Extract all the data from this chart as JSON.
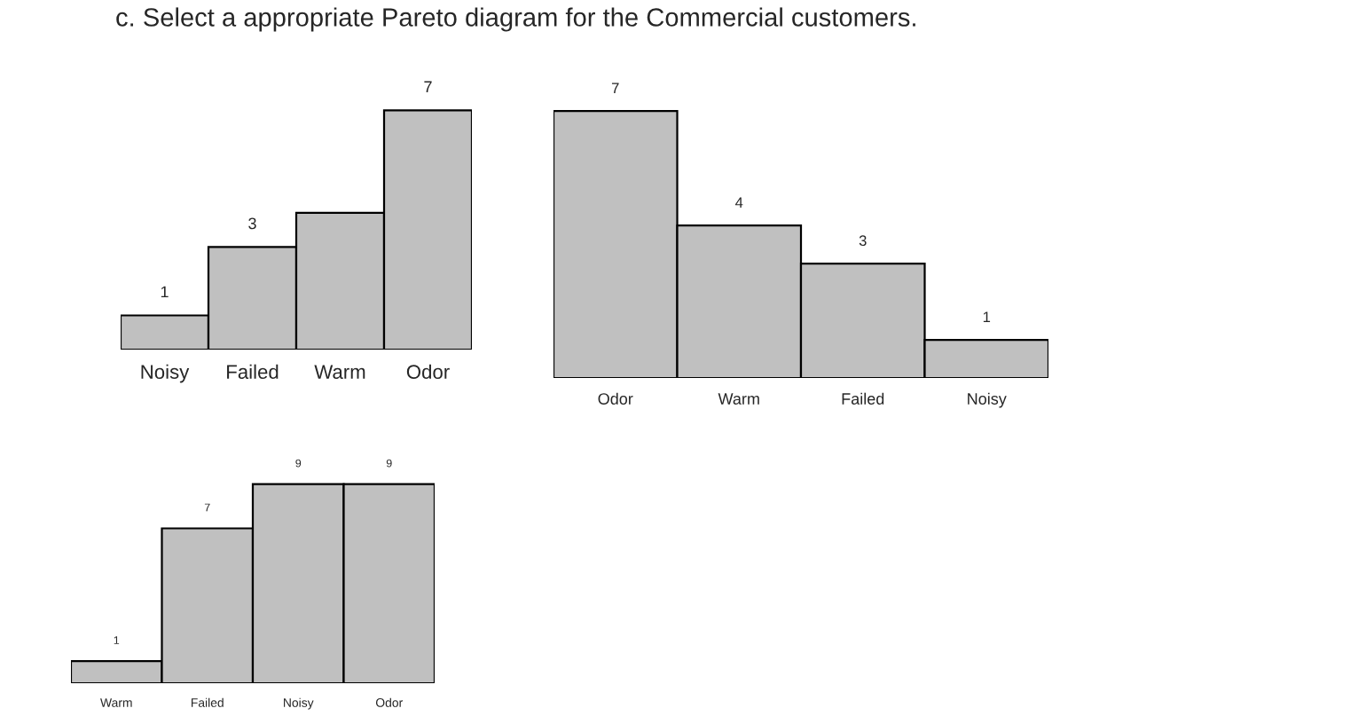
{
  "chart_data": [
    {
      "type": "bar",
      "title": "c. Select a appropriate Pareto diagram for the Commercial customers.",
      "categories": [
        "Noisy",
        "Failed",
        "Warm",
        "Odor"
      ],
      "values": [
        1,
        3,
        4,
        7
      ],
      "value_labels": [
        "1",
        "3",
        null,
        "7"
      ],
      "color": "#c0c0c0"
    },
    {
      "type": "bar",
      "categories": [
        "Odor",
        "Warm",
        "Failed",
        "Noisy"
      ],
      "values": [
        7,
        4,
        3,
        1
      ],
      "data_labels": true,
      "color": "#c0c0c0"
    },
    {
      "type": "bar",
      "categories": [
        "Warm",
        "Failed",
        "Noisy",
        "Odor"
      ],
      "values": [
        1,
        7,
        9,
        9
      ],
      "data_labels": true,
      "color": "#c0c0c0"
    }
  ]
}
